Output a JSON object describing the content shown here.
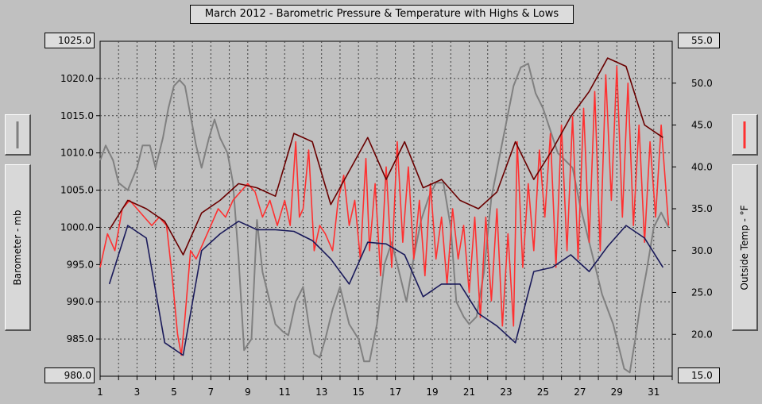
{
  "title": "March 2012 - Barometric Pressure & Temperature with Highs & Lows",
  "left_axis_label": "Barometer - mb",
  "right_axis_label": "Outside Temp - °F",
  "left_top_value": "1025.0",
  "left_bottom_value": "980.0",
  "right_top_value": "55.0",
  "right_bottom_value": "15.0",
  "colors": {
    "barometer": "#808080",
    "temperature": "#ff3030",
    "highs": "#6a0000",
    "lows": "#1a1a5a",
    "background": "#c0c0c0"
  },
  "chart_data": {
    "type": "line",
    "title": "March 2012 - Barometric Pressure & Temperature with Highs & Lows",
    "x_axis": {
      "label": "",
      "range": [
        1,
        32
      ],
      "ticks": [
        1,
        3,
        5,
        7,
        9,
        11,
        13,
        15,
        17,
        19,
        21,
        23,
        25,
        27,
        29,
        31
      ]
    },
    "y_left": {
      "label": "Barometer - mb",
      "range": [
        980,
        1025
      ],
      "ticks": [
        "980.0",
        "985.0",
        "990.0",
        "995.0",
        "1000.0",
        "1005.0",
        "1010.0",
        "1015.0",
        "1020.0",
        "1025.0"
      ]
    },
    "y_right": {
      "label": "Outside Temp - °F",
      "range": [
        15,
        55
      ],
      "ticks": [
        "15.0",
        "20.0",
        "25.0",
        "30.0",
        "35.0",
        "40.0",
        "45.0",
        "50.0",
        "55.0"
      ]
    },
    "grid": true,
    "series": [
      {
        "axis": "left",
        "x": [
          1.0,
          1.3,
          1.7,
          2.0,
          2.5,
          3.0,
          3.3,
          3.7,
          4.0,
          4.4,
          4.7,
          5.0,
          5.3,
          5.6,
          5.9,
          6.2,
          6.5,
          6.9,
          7.2,
          7.5,
          7.9,
          8.2,
          8.5,
          8.8,
          9.2,
          9.5,
          9.8,
          10.2,
          10.5,
          10.9,
          11.2,
          11.6,
          12.0,
          12.3,
          12.6,
          12.9,
          13.2,
          13.6,
          14.0,
          14.5,
          15.0,
          15.3,
          15.6,
          16.0,
          16.4,
          16.8,
          17.2,
          17.6,
          18.0,
          18.4,
          18.8,
          19.2,
          19.6,
          20.0,
          20.3,
          20.7,
          21.0,
          21.4,
          21.8,
          22.2,
          22.6,
          23.0,
          23.4,
          23.8,
          24.2,
          24.6,
          25.0,
          25.4,
          25.8,
          26.2,
          26.6,
          27.0,
          27.4,
          27.8,
          28.2,
          28.5,
          28.8,
          29.1,
          29.4,
          29.7,
          30.0,
          30.3,
          30.6,
          31.0,
          31.4,
          31.8
        ],
        "y": [
          1009,
          1011,
          1009,
          1006,
          1005,
          1008,
          1011,
          1011,
          1008,
          1012,
          1016,
          1019,
          1019.8,
          1019,
          1015,
          1011,
          1008,
          1012,
          1014.5,
          1012,
          1010,
          1006,
          996,
          983.5,
          985,
          1001,
          994,
          990,
          987,
          986,
          985.5,
          990,
          992,
          987,
          983,
          982.5,
          985,
          989,
          992,
          987,
          985,
          982,
          982,
          987,
          995,
          998,
          994,
          990,
          996,
          1001,
          1004,
          1006,
          1006,
          1000,
          990,
          988,
          987,
          988,
          994,
          1004,
          1009,
          1014,
          1019,
          1021.5,
          1022,
          1018,
          1016,
          1013,
          1010,
          1009,
          1008,
          1003,
          999,
          995,
          991,
          989,
          987,
          984,
          981,
          980.5,
          985,
          990,
          994,
          1000,
          1002,
          1000
        ]
      },
      {
        "axis": "right",
        "x": [
          1.0,
          1.4,
          1.8,
          2.2,
          2.6,
          3.0,
          3.4,
          3.8,
          4.2,
          4.6,
          4.9,
          5.2,
          5.4,
          5.6,
          5.9,
          6.2,
          6.6,
          7.0,
          7.4,
          7.8,
          8.2,
          8.6,
          9.0,
          9.4,
          9.8,
          10.2,
          10.6,
          11.0,
          11.3,
          11.6,
          11.8,
          12.0,
          12.3,
          12.6,
          12.9,
          13.2,
          13.6,
          13.9,
          14.2,
          14.5,
          14.8,
          15.1,
          15.4,
          15.6,
          15.9,
          16.2,
          16.5,
          16.8,
          17.1,
          17.4,
          17.7,
          18.0,
          18.3,
          18.6,
          18.9,
          19.2,
          19.5,
          19.8,
          20.1,
          20.4,
          20.7,
          21.0,
          21.3,
          21.6,
          21.9,
          22.2,
          22.5,
          22.8,
          23.1,
          23.4,
          23.6,
          23.9,
          24.2,
          24.5,
          24.8,
          25.1,
          25.4,
          25.7,
          26.0,
          26.3,
          26.6,
          26.9,
          27.2,
          27.5,
          27.8,
          28.1,
          28.4,
          28.7,
          29.0,
          29.3,
          29.6,
          29.9,
          30.2,
          30.5,
          30.8,
          31.1,
          31.4,
          31.8
        ],
        "y": [
          28,
          32,
          30,
          35,
          36,
          35,
          34,
          33,
          34,
          33,
          27,
          20,
          17.5,
          22,
          30,
          29,
          31,
          33,
          35,
          34,
          36,
          37,
          38,
          37,
          34,
          36,
          33,
          36,
          33,
          43,
          34,
          35,
          42,
          30,
          33,
          32,
          30,
          36,
          39,
          33,
          36,
          29,
          41,
          30,
          38,
          27,
          40,
          28,
          43,
          31,
          40,
          29,
          36,
          27,
          38,
          29,
          34,
          26,
          35,
          29,
          33,
          25,
          34,
          22,
          34,
          24,
          35,
          21,
          32,
          21,
          43,
          28,
          38,
          30,
          42,
          34,
          44,
          28,
          45,
          30,
          46,
          29,
          47,
          31,
          49,
          30,
          51,
          36,
          52,
          34,
          50,
          33,
          45,
          31,
          43,
          34,
          45,
          33
        ]
      },
      {
        "axis": "right",
        "name_hidden": "highs",
        "x": [
          1.5,
          2.5,
          3.5,
          4.5,
          5.5,
          6.5,
          7.5,
          8.5,
          9.5,
          10.5,
          11.5,
          12.5,
          13.5,
          14.5,
          15.5,
          16.5,
          17.5,
          18.5,
          19.5,
          20.5,
          21.5,
          22.5,
          23.5,
          24.5,
          25.5,
          26.5,
          27.5,
          28.5,
          29.5,
          30.5,
          31.5
        ],
        "y": [
          32.5,
          36,
          35,
          33.5,
          29.5,
          34.5,
          36,
          38,
          37.5,
          36.5,
          44,
          43,
          35.5,
          39.5,
          43.5,
          38.5,
          43,
          37.5,
          38.5,
          36,
          35,
          37,
          43,
          38.5,
          42,
          46,
          49,
          53,
          52,
          45,
          43.5
        ]
      },
      {
        "axis": "right",
        "name_hidden": "lows",
        "x": [
          1.5,
          2.5,
          3.5,
          4.5,
          5.5,
          6.5,
          7.5,
          8.5,
          9.5,
          10.5,
          11.5,
          12.5,
          13.5,
          14.5,
          15.5,
          16.5,
          17.5,
          18.5,
          19.5,
          20.5,
          21.5,
          22.5,
          23.5,
          24.5,
          25.5,
          26.5,
          27.5,
          28.5,
          29.5,
          30.5,
          31.5
        ],
        "y": [
          26,
          33,
          31.5,
          19,
          17.5,
          30,
          32,
          33.5,
          32.5,
          32.5,
          32.3,
          31.2,
          29,
          26,
          31,
          30.8,
          29.5,
          24.5,
          26,
          26,
          22.5,
          21,
          19,
          27.5,
          28,
          29.5,
          27.5,
          30.5,
          33,
          31.5,
          28
        ]
      }
    ]
  }
}
